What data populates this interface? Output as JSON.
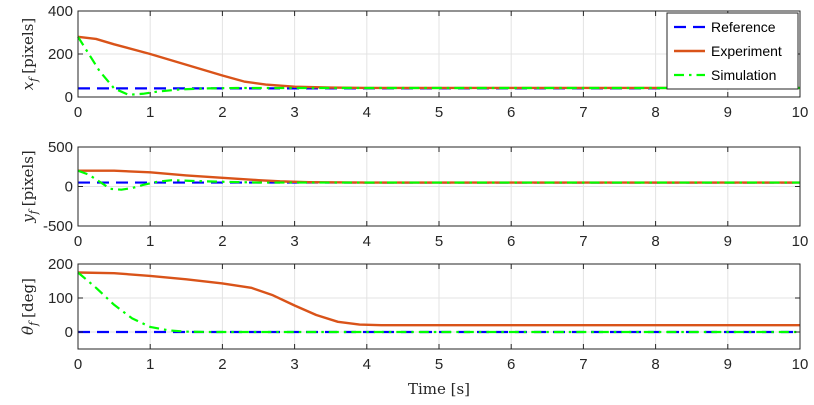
{
  "chart_data": [
    {
      "type": "line",
      "ylabel": "x_f [pixels]",
      "ylabel_var": "x",
      "ylabel_sub": "f",
      "ylabel_unit": "[pixels]",
      "xlim": [
        0,
        10
      ],
      "ylim": [
        0,
        400
      ],
      "x_ticks": [
        0,
        1,
        2,
        3,
        4,
        5,
        6,
        7,
        8,
        9,
        10
      ],
      "y_ticks": [
        0,
        200,
        400
      ],
      "grid": true,
      "legend": "top-right",
      "series": [
        {
          "name": "Reference",
          "style": "dashed",
          "color": "#0000ff",
          "x": [
            0,
            10
          ],
          "y": [
            40,
            40
          ]
        },
        {
          "name": "Experiment",
          "style": "solid",
          "color": "#d95319",
          "x": [
            0,
            0.25,
            0.5,
            1.0,
            1.5,
            2.0,
            2.3,
            2.6,
            3.0,
            3.5,
            4.0,
            10.0
          ],
          "y": [
            280,
            270,
            245,
            200,
            150,
            100,
            72,
            58,
            48,
            44,
            42,
            42
          ]
        },
        {
          "name": "Simulation",
          "style": "dashdot",
          "color": "#00ff00",
          "x": [
            0,
            0.15,
            0.3,
            0.5,
            0.7,
            0.9,
            1.1,
            1.4,
            1.8,
            2.2,
            3.0,
            10.0
          ],
          "y": [
            280,
            200,
            120,
            40,
            10,
            15,
            25,
            35,
            40,
            42,
            42,
            42
          ]
        }
      ]
    },
    {
      "type": "line",
      "ylabel": "y_f [pixels]",
      "ylabel_var": "y",
      "ylabel_sub": "f",
      "ylabel_unit": "[pixels]",
      "xlim": [
        0,
        10
      ],
      "ylim": [
        -500,
        500
      ],
      "x_ticks": [
        0,
        1,
        2,
        3,
        4,
        5,
        6,
        7,
        8,
        9,
        10
      ],
      "y_ticks": [
        -500,
        0,
        500
      ],
      "grid": true,
      "series": [
        {
          "style": "dashed",
          "color": "#0000ff",
          "x": [
            0,
            10
          ],
          "y": [
            50,
            50
          ]
        },
        {
          "style": "solid",
          "color": "#d95319",
          "x": [
            0,
            0.5,
            1.0,
            1.5,
            2.0,
            2.5,
            2.8,
            3.2,
            4.0,
            10.0
          ],
          "y": [
            200,
            200,
            180,
            140,
            110,
            80,
            65,
            55,
            50,
            50
          ]
        },
        {
          "style": "dashdot",
          "color": "#00ff00",
          "x": [
            0,
            0.15,
            0.3,
            0.45,
            0.6,
            0.75,
            0.9,
            1.1,
            1.3,
            1.6,
            2.0,
            2.5,
            3.0,
            10.0
          ],
          "y": [
            200,
            150,
            60,
            -30,
            -40,
            -20,
            20,
            60,
            80,
            70,
            60,
            50,
            50,
            50
          ]
        }
      ]
    },
    {
      "type": "line",
      "ylabel": "θ_f [deg]",
      "ylabel_var": "θ",
      "ylabel_sub": "f",
      "ylabel_unit": "[deg]",
      "xlabel": "Time [s]",
      "xlim": [
        0,
        10
      ],
      "ylim": [
        -50,
        200
      ],
      "x_ticks": [
        0,
        1,
        2,
        3,
        4,
        5,
        6,
        7,
        8,
        9,
        10
      ],
      "y_ticks": [
        0,
        100,
        200
      ],
      "grid": true,
      "series": [
        {
          "style": "dashed",
          "color": "#0000ff",
          "x": [
            0,
            10
          ],
          "y": [
            0,
            0
          ]
        },
        {
          "style": "solid",
          "color": "#d95319",
          "x": [
            0,
            0.5,
            1.0,
            1.5,
            2.0,
            2.4,
            2.7,
            3.0,
            3.3,
            3.6,
            3.9,
            4.2,
            4.5,
            10.0
          ],
          "y": [
            175,
            173,
            165,
            155,
            143,
            130,
            108,
            78,
            50,
            30,
            22,
            20,
            20,
            20
          ]
        },
        {
          "style": "dashdot",
          "color": "#00ff00",
          "x": [
            0,
            0.25,
            0.5,
            0.75,
            1.0,
            1.25,
            1.5,
            1.8,
            2.2,
            10.0
          ],
          "y": [
            175,
            130,
            80,
            40,
            15,
            5,
            1,
            0,
            0,
            0
          ]
        }
      ]
    }
  ]
}
